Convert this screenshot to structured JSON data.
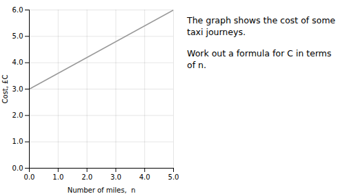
{
  "chart_data": {
    "type": "line",
    "title": "The graph shows the cost of some taxi journeys.",
    "subtitle": "Work out a formula for C in terms of n.",
    "xlabel": "Number of miles,  n",
    "ylabel": "Cost, £C",
    "x": [
      0,
      5
    ],
    "values": [
      3.0,
      6.0
    ],
    "color": "#999999",
    "xlim": [
      0,
      5
    ],
    "ylim": [
      0,
      6
    ],
    "xticks": [
      0,
      1,
      2,
      3,
      4,
      5
    ],
    "yticks": [
      0,
      1,
      2,
      3,
      4,
      5,
      6
    ],
    "grid": true
  }
}
